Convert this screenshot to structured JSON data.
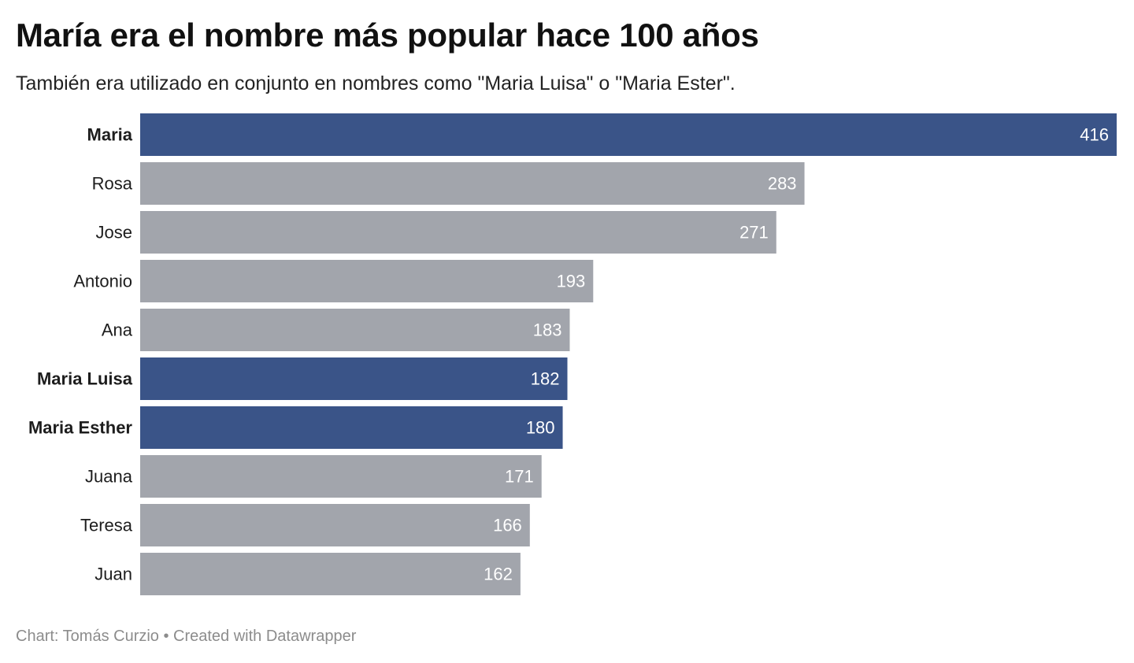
{
  "header": {
    "title": "María era el nombre más popular hace 100 años",
    "subtitle": "También era utilizado en conjunto en nombres como \"Maria Luisa\" o \"Maria Ester\"."
  },
  "footer": {
    "text": "Chart: Tomás Curzio • Created with Datawrapper"
  },
  "colors": {
    "highlight": "#3a5488",
    "default": "#a2a5ac",
    "value_label": "#ffffff"
  },
  "chart_data": {
    "type": "bar",
    "orientation": "horizontal",
    "title": "María era el nombre más popular hace 100 años",
    "subtitle": "También era utilizado en conjunto en nombres como \"Maria Luisa\" o \"Maria Ester\".",
    "categories": [
      "Maria",
      "Rosa",
      "Jose",
      "Antonio",
      "Ana",
      "Maria Luisa",
      "Maria Esther",
      "Juana",
      "Teresa",
      "Juan"
    ],
    "values": [
      416,
      283,
      271,
      193,
      183,
      182,
      180,
      171,
      166,
      162
    ],
    "highlighted": [
      true,
      false,
      false,
      false,
      false,
      true,
      true,
      false,
      false,
      false
    ],
    "xlim": [
      0,
      416
    ],
    "grid": false,
    "data_labels": true
  }
}
